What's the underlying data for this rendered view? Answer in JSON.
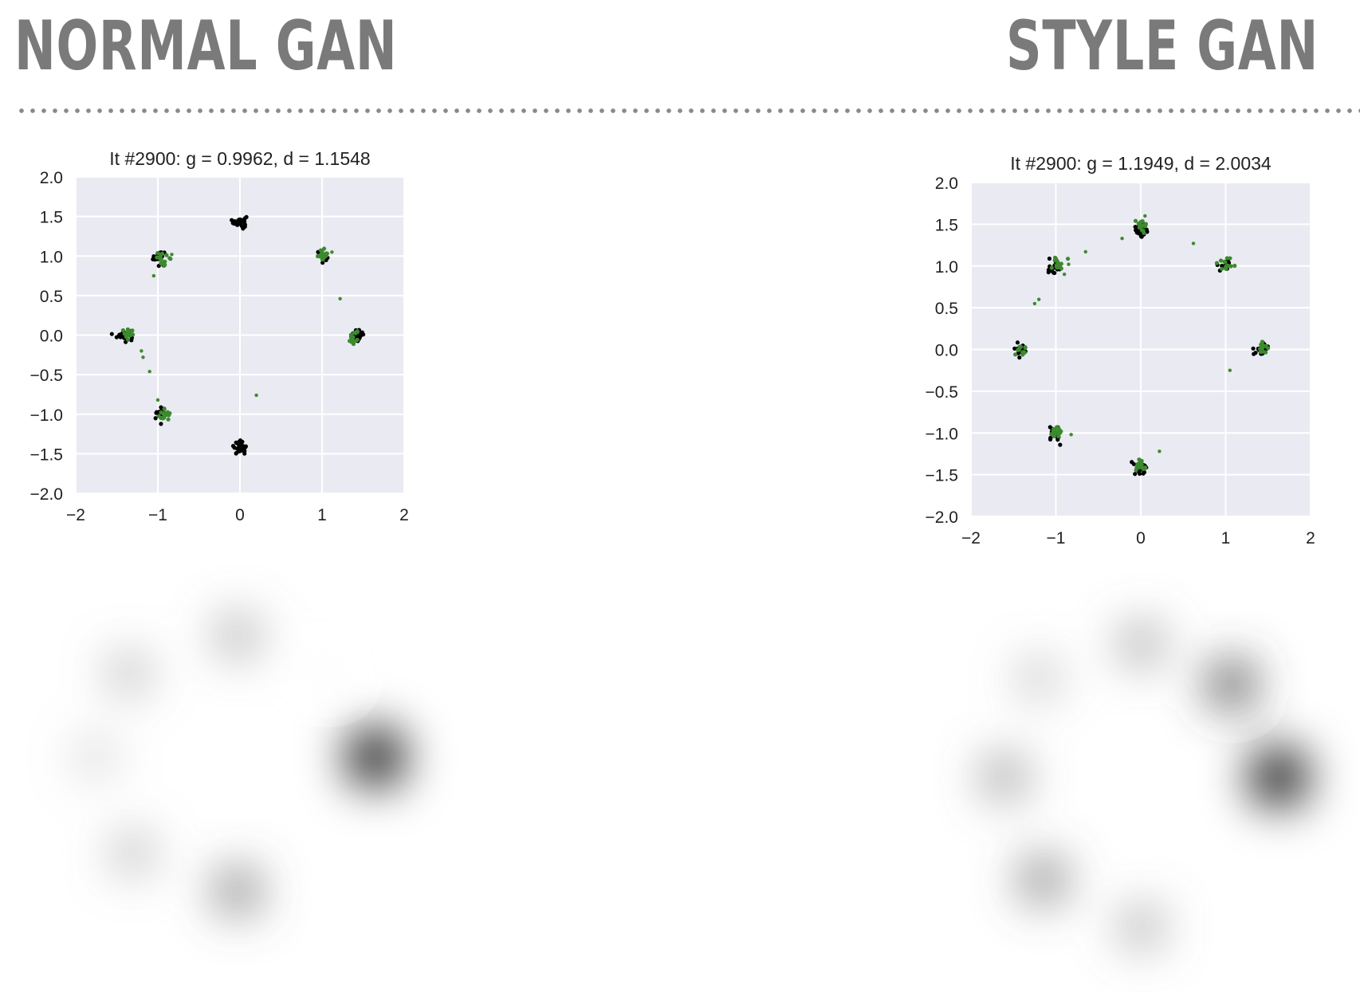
{
  "headings": {
    "left": "NORMAL GAN",
    "right": "STYLE GAN"
  },
  "colors": {
    "plot_bg": "#eaeaf2",
    "grid": "#ffffff",
    "real": "#000000",
    "generated": "#3c8a2e",
    "heading": "#7a7a7a"
  },
  "chart_data": [
    {
      "type": "scatter",
      "title": "It #2900: g = 0.9962, d = 1.1548",
      "xlabel": "",
      "ylabel": "",
      "xlim": [
        -2,
        2
      ],
      "ylim": [
        -2,
        2
      ],
      "xticks": [
        -2,
        -1,
        0,
        1,
        2
      ],
      "yticks": [
        -2.0,
        -1.5,
        -1.0,
        -0.5,
        0.0,
        0.5,
        1.0,
        1.5,
        2.0
      ],
      "xtick_labels": [
        "−2",
        "−1",
        "0",
        "1",
        "2"
      ],
      "ytick_labels": [
        "−2.0",
        "−1.5",
        "−1.0",
        "−0.5",
        "0.0",
        "0.5",
        "1.0",
        "1.5",
        "2.0"
      ],
      "grid": true,
      "series": [
        {
          "color": "#000000",
          "clusters": [
            [
              0,
              1.43,
              30
            ],
            [
              -0.99,
              0.99,
              26
            ],
            [
              1.0,
              1.0,
              12
            ],
            [
              -1.42,
              0,
              20
            ],
            [
              1.42,
              0,
              30
            ],
            [
              -0.98,
              -1.0,
              18
            ],
            [
              0,
              -1.42,
              30
            ]
          ]
        },
        {
          "color": "#3c8a2e",
          "clusters": [
            [
              -0.93,
              0.98,
              16
            ],
            [
              1.03,
              1.0,
              16
            ],
            [
              -1.35,
              0,
              14
            ],
            [
              1.38,
              -0.02,
              16
            ],
            [
              -0.92,
              -1.02,
              14
            ]
          ],
          "points": [
            [
              -1.05,
              0.75
            ],
            [
              1.22,
              0.46
            ],
            [
              -1.2,
              -0.2
            ],
            [
              -1.18,
              -0.28
            ],
            [
              -1.1,
              -0.46
            ],
            [
              0.2,
              -0.76
            ],
            [
              -1.0,
              -0.82
            ],
            [
              -0.95,
              1.03
            ],
            [
              -0.83,
              1.02
            ],
            [
              1.12,
              1.05
            ],
            [
              1.35,
              -0.08
            ],
            [
              -0.88,
              -0.97
            ]
          ]
        }
      ],
      "density_modes": [
        [
          0,
          1.45,
          0.5
        ],
        [
          -1.3,
          1.0,
          0.45
        ],
        [
          1.05,
          1.05,
          0.07
        ],
        [
          -1.7,
          0,
          0.35
        ],
        [
          1.65,
          0,
          1.0
        ],
        [
          -1.25,
          -1.15,
          0.45
        ],
        [
          0,
          -1.6,
          0.62
        ]
      ]
    },
    {
      "type": "scatter",
      "title": "It #2900: g = 1.1949, d = 2.0034",
      "xlabel": "",
      "ylabel": "",
      "xlim": [
        -2,
        2
      ],
      "ylim": [
        -2,
        2
      ],
      "xticks": [
        -2,
        -1,
        0,
        1,
        2
      ],
      "yticks": [
        -2.0,
        -1.5,
        -1.0,
        -0.5,
        0.0,
        0.5,
        1.0,
        1.5,
        2.0
      ],
      "xtick_labels": [
        "−2",
        "−1",
        "0",
        "1",
        "2"
      ],
      "ytick_labels": [
        "−2.0",
        "−1.5",
        "−1.0",
        "−0.5",
        "0.0",
        "0.5",
        "1.0",
        "1.5",
        "2.0"
      ],
      "grid": true,
      "series": [
        {
          "color": "#000000",
          "clusters": [
            [
              0,
              1.42,
              28
            ],
            [
              -1.0,
              1.0,
              22
            ],
            [
              1.0,
              1.0,
              12
            ],
            [
              -1.42,
              0,
              14
            ],
            [
              1.42,
              0,
              30
            ],
            [
              -1.0,
              -1.0,
              18
            ],
            [
              0,
              -1.42,
              24
            ]
          ]
        },
        {
          "color": "#3c8a2e",
          "clusters": [
            [
              0.01,
              1.5,
              16
            ],
            [
              -0.98,
              1.02,
              14
            ],
            [
              1.02,
              1.03,
              14
            ],
            [
              -1.4,
              0,
              12
            ],
            [
              1.4,
              0.02,
              14
            ],
            [
              -1.0,
              -0.98,
              14
            ],
            [
              -0.02,
              -1.4,
              18
            ]
          ],
          "points": [
            [
              -0.65,
              1.17
            ],
            [
              -0.22,
              1.33
            ],
            [
              0.62,
              1.27
            ],
            [
              -1.25,
              0.55
            ],
            [
              -1.2,
              0.6
            ],
            [
              -0.9,
              0.9
            ],
            [
              -0.85,
              1.02
            ],
            [
              1.05,
              -0.25
            ],
            [
              -0.82,
              -1.02
            ],
            [
              0.22,
              -1.22
            ],
            [
              0.05,
              1.6
            ]
          ]
        }
      ],
      "density_modes": [
        [
          0,
          1.55,
          0.52
        ],
        [
          -1.2,
          1.15,
          0.42
        ],
        [
          1.05,
          1.08,
          0.72
        ],
        [
          -1.6,
          0,
          0.55
        ],
        [
          1.6,
          0,
          1.0
        ],
        [
          -1.15,
          -1.2,
          0.62
        ],
        [
          0,
          -1.75,
          0.5
        ]
      ]
    }
  ]
}
